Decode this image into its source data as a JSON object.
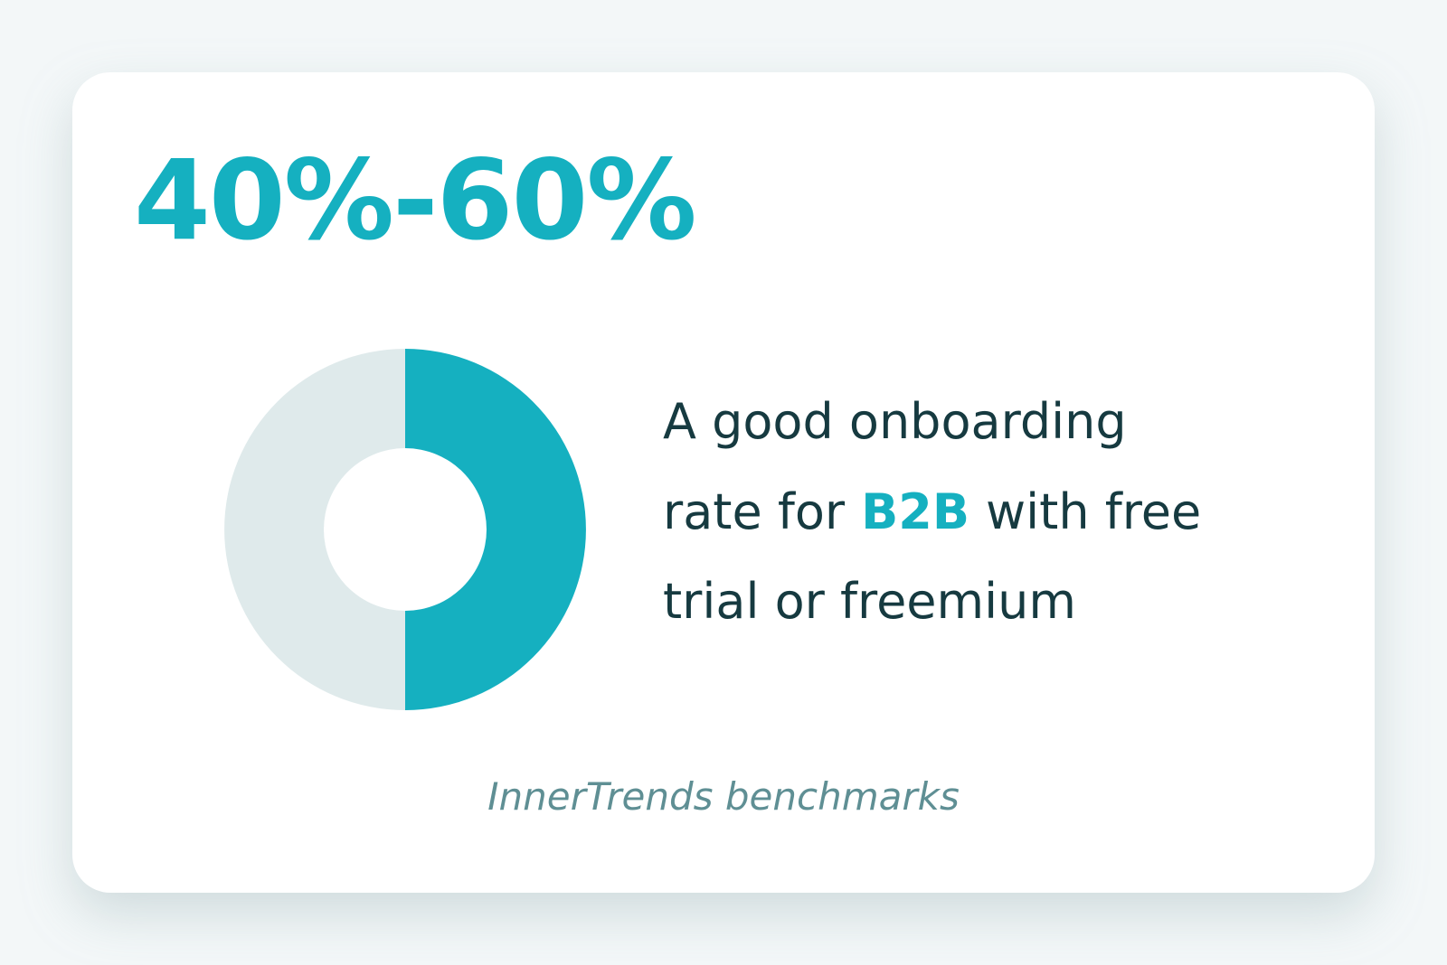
{
  "chart_data": {
    "type": "donut",
    "headline": "40%-60%",
    "values": [
      50,
      50
    ],
    "colors": [
      "#15b0c0",
      "#dfeaeb"
    ],
    "description": {
      "line1": "A good onboarding",
      "line2_before": "rate for",
      "highlight": "B2B",
      "line2_after": "with free",
      "line3": "trial or freemium"
    },
    "source": "InnerTrends benchmarks"
  }
}
